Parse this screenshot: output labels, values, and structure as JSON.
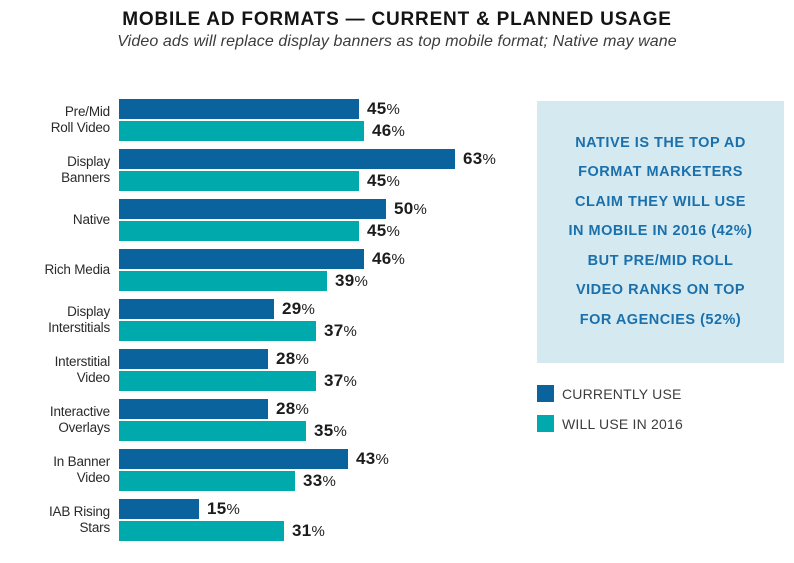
{
  "header": {
    "title": "MOBILE AD FORMATS — CURRENT & PLANNED USAGE",
    "subtitle": "Video ads will replace display banners as top mobile format; Native may wane"
  },
  "chart_data": {
    "type": "bar",
    "orientation": "horizontal",
    "title": "MOBILE AD FORMATS — CURRENT & PLANNED USAGE",
    "subtitle": "Video ads will replace display banners as top mobile format; Native may wane",
    "categories": [
      "Pre/Mid Roll Video",
      "Display Banners",
      "Native",
      "Rich Media",
      "Display Interstitials",
      "Interstitial Video",
      "Interactive Overlays",
      "In Banner Video",
      "IAB Rising Stars"
    ],
    "category_lines": [
      [
        "Pre/Mid",
        "Roll Video"
      ],
      [
        "Display",
        "Banners"
      ],
      [
        "Native"
      ],
      [
        "Rich Media"
      ],
      [
        "Display",
        "Interstitials"
      ],
      [
        "Interstitial",
        "Video"
      ],
      [
        "Interactive",
        "Overlays"
      ],
      [
        "In Banner",
        "Video"
      ],
      [
        "IAB Rising",
        "Stars"
      ]
    ],
    "series": [
      {
        "name": "CURRENTLY USE",
        "color": "#0a639c",
        "values": [
          45,
          63,
          50,
          46,
          29,
          28,
          28,
          43,
          15
        ]
      },
      {
        "name": "WILL USE IN 2016",
        "color": "#00a9ac",
        "values": [
          46,
          45,
          45,
          39,
          37,
          37,
          35,
          33,
          31
        ]
      }
    ],
    "value_suffix": "%",
    "xlim": [
      0,
      70
    ],
    "grid": false,
    "legend_position": "right-below-callout",
    "value_labels": "outside-end"
  },
  "callout": {
    "lines": [
      "NATIVE IS THE TOP AD",
      "FORMAT MARKETERS",
      "CLAIM THEY WILL USE",
      "IN MOBILE IN 2016 (42%)",
      "BUT PRE/MID ROLL",
      "VIDEO RANKS ON TOP",
      "FOR AGENCIES (52%)"
    ],
    "text": "NATIVE IS THE TOP AD FORMAT MARKETERS CLAIM THEY WILL USE IN MOBILE IN 2016 (42%) BUT PRE/MID ROLL VIDEO RANKS ON TOP FOR AGENCIES (52%)",
    "background": "#d4eaf0",
    "text_color": "#1b70ac"
  },
  "colors": {
    "currently_use": "#0a639c",
    "will_use_2016": "#00a9ac",
    "callout_background": "#d4eaf0",
    "callout_text": "#1b70ac",
    "title_text": "#141414",
    "value_text": "#1c1c1c",
    "category_text": "#2a2a2a",
    "legend_text": "#3d3d3d",
    "page_background": "#ffffff"
  }
}
